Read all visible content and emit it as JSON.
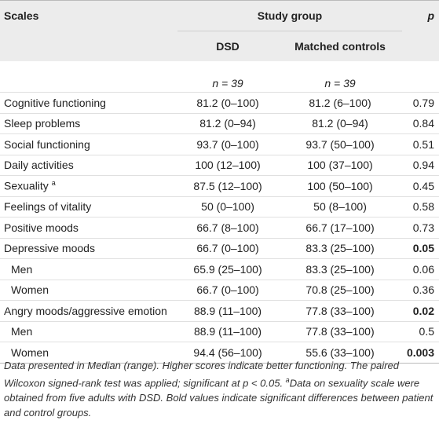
{
  "table": {
    "header": {
      "scales": "Scales",
      "study_group": "Study group",
      "p": "p",
      "dsd": "DSD",
      "controls": "Matched controls"
    },
    "n_dsd": "n = 39",
    "n_controls": "n = 39",
    "rows": [
      {
        "label": "Cognitive functioning",
        "dsd": "81.2 (0–100)",
        "controls": "81.2 (6–100)",
        "p": "0.79"
      },
      {
        "label": "Sleep problems",
        "dsd": "81.2 (0–94)",
        "controls": "81.2 (0–94)",
        "p": "0.84"
      },
      {
        "label": "Social functioning",
        "dsd": "93.7 (0–100)",
        "controls": "93.7 (50–100)",
        "p": "0.51"
      },
      {
        "label": "Daily activities",
        "dsd": "100 (12–100)",
        "controls": "100 (37–100)",
        "p": "0.94"
      },
      {
        "label": "Sexuality",
        "sup": "a",
        "dsd": "87.5 (12–100)",
        "controls": "100 (50–100)",
        "p": "0.45"
      },
      {
        "label": "Feelings of vitality",
        "dsd": "50 (0–100)",
        "controls": "50 (8–100)",
        "p": "0.58"
      },
      {
        "label": "Positive moods",
        "dsd": "66.7 (8–100)",
        "controls": "66.7 (17–100)",
        "p": "0.73"
      },
      {
        "label": "Depressive moods",
        "dsd": "66.7 (0–100)",
        "controls": "83.3 (25–100)",
        "p": "0.05",
        "bold": true
      },
      {
        "label": "Men",
        "indent": true,
        "dsd": "65.9 (25–100)",
        "controls": "83.3 (25–100)",
        "p": "0.06"
      },
      {
        "label": "Women",
        "indent": true,
        "dsd": "66.7 (0–100)",
        "controls": "70.8 (25–100)",
        "p": "0.36"
      },
      {
        "label": "Angry moods/aggressive emotion",
        "dsd": "88.9 (11–100)",
        "controls": "77.8 (33–100)",
        "p": "0.02",
        "bold": true
      },
      {
        "label": "Men",
        "indent": true,
        "dsd": "88.9 (11–100)",
        "controls": "77.8 (33–100)",
        "p": "0.5"
      },
      {
        "label": "Women",
        "indent": true,
        "dsd": "94.4 (56–100)",
        "controls": "55.6 (33–100)",
        "p": "0.003",
        "bold": true
      }
    ]
  },
  "footnote": {
    "text1": "Data presented in Median (range). Higher scores indicate better functioning. The paired Wilcoxon signed-rank test was applied; significant at p < 0.05. ",
    "marker": "a",
    "text2": "Data on sexuality scale were obtained from five adults with DSD. Bold values indicate significant differences between patient and control groups."
  }
}
